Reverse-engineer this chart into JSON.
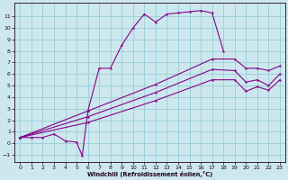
{
  "xlabel": "Windchill (Refroidissement éolien,°C)",
  "bg_color": "#cce8ee",
  "grid_color": "#99ccd6",
  "line_color": "#880088",
  "xlim": [
    -0.5,
    23.5
  ],
  "ylim": [
    -1.6,
    12.2
  ],
  "xticks": [
    0,
    1,
    2,
    3,
    4,
    5,
    6,
    7,
    8,
    9,
    10,
    11,
    12,
    13,
    14,
    15,
    16,
    17,
    18,
    19,
    20,
    21,
    22,
    23
  ],
  "yticks": [
    -1,
    0,
    1,
    2,
    3,
    4,
    5,
    6,
    7,
    8,
    9,
    10,
    11
  ],
  "curve1_x": [
    0,
    1,
    2,
    3,
    4,
    5,
    5.5,
    6,
    7,
    8,
    9,
    10,
    11,
    12,
    13,
    14,
    15,
    16,
    17,
    18
  ],
  "curve1_y": [
    0.5,
    0.5,
    0.5,
    0.8,
    0.2,
    0.1,
    -1.1,
    2.8,
    6.5,
    6.5,
    8.5,
    10.0,
    11.2,
    10.5,
    11.2,
    11.3,
    11.4,
    11.5,
    11.3,
    8.0
  ],
  "diag1_x": [
    0,
    6,
    12,
    17,
    19,
    20,
    21,
    22,
    23
  ],
  "diag1_y": [
    0.5,
    2.8,
    5.1,
    7.3,
    7.3,
    6.5,
    6.5,
    6.3,
    6.7
  ],
  "diag2_x": [
    0,
    6,
    12,
    17,
    19,
    20,
    21,
    22,
    23
  ],
  "diag2_y": [
    0.5,
    2.3,
    4.4,
    6.4,
    6.3,
    5.3,
    5.5,
    5.0,
    6.0
  ],
  "diag3_x": [
    0,
    6,
    12,
    17,
    19,
    20,
    21,
    22,
    23
  ],
  "diag3_y": [
    0.5,
    1.8,
    3.7,
    5.5,
    5.5,
    4.5,
    4.9,
    4.6,
    5.5
  ]
}
